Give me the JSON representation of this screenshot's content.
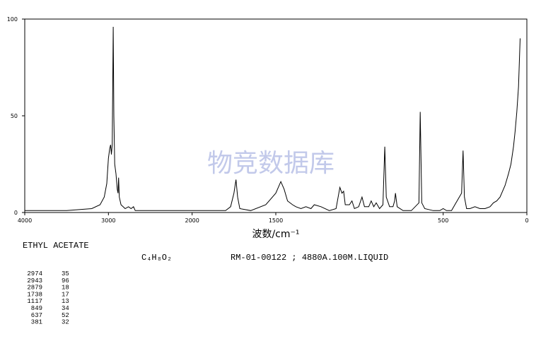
{
  "chart_data": {
    "type": "line",
    "watermark": "物竞数据库",
    "xlabel": "波数/cm⁻¹",
    "name": "ETHYL ACETATE",
    "formula": "C₄H₈O₂",
    "info": "RM-01-00122 ; 4880A.100M.LIQUID",
    "xlim": [
      4000,
      0
    ],
    "xbreak": 2000,
    "xbreak_factor": 2,
    "ylim": [
      0,
      100
    ],
    "xticks": [
      4000,
      3000,
      2000,
      1500,
      500,
      0
    ],
    "yticks": [
      0,
      50,
      100
    ],
    "color": "#000000",
    "x": [
      4000,
      3500,
      3200,
      3100,
      3050,
      3020,
      3000,
      2985,
      2974,
      2965,
      2955,
      2943,
      2935,
      2925,
      2910,
      2895,
      2885,
      2879,
      2870,
      2850,
      2800,
      2760,
      2730,
      2700,
      2680,
      2600,
      2000,
      1800,
      1770,
      1750,
      1738,
      1728,
      1715,
      1650,
      1560,
      1500,
      1470,
      1450,
      1430,
      1400,
      1380,
      1350,
      1320,
      1290,
      1270,
      1230,
      1180,
      1140,
      1117,
      1105,
      1095,
      1085,
      1060,
      1045,
      1030,
      1005,
      985,
      970,
      945,
      930,
      915,
      900,
      880,
      860,
      849,
      840,
      820,
      800,
      790,
      785,
      775,
      740,
      690,
      645,
      637,
      628,
      610,
      560,
      520,
      500,
      480,
      450,
      430,
      390,
      381,
      373,
      360,
      340,
      310,
      280,
      250,
      220,
      200,
      180,
      160,
      130,
      110,
      95,
      80,
      70,
      60,
      50,
      45,
      40
    ],
    "values": [
      1,
      1,
      2,
      4,
      8,
      15,
      28,
      33,
      35,
      30,
      35,
      96,
      50,
      25,
      20,
      12,
      10,
      18,
      8,
      4,
      2,
      3,
      2,
      3,
      1,
      1,
      1,
      1,
      3,
      10,
      17,
      8,
      2,
      1,
      4,
      10,
      16,
      12,
      6,
      4,
      3,
      2,
      3,
      2,
      4,
      3,
      1,
      2,
      13,
      10,
      11,
      4,
      4,
      6,
      2,
      3,
      8,
      3,
      3,
      6,
      3,
      5,
      2,
      4,
      34,
      8,
      3,
      3,
      6,
      10,
      3,
      1,
      1,
      5,
      52,
      5,
      2,
      1,
      1,
      2,
      1,
      1,
      4,
      10,
      32,
      8,
      2,
      2,
      3,
      2,
      2,
      3,
      5,
      6,
      8,
      14,
      20,
      25,
      34,
      42,
      52,
      65,
      78,
      90
    ],
    "peak_table": {
      "rows": [
        [
          "2974",
          "35"
        ],
        [
          "2943",
          "96"
        ],
        [
          "2879",
          "18"
        ],
        [
          "1738",
          "17"
        ],
        [
          "1117",
          "13"
        ],
        [
          "849",
          "34"
        ],
        [
          "637",
          "52"
        ],
        [
          "381",
          "32"
        ]
      ]
    }
  }
}
